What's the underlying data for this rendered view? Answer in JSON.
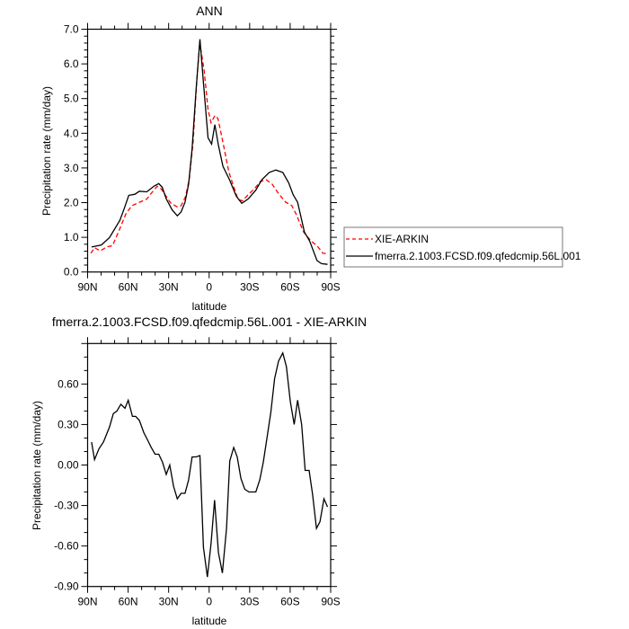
{
  "chart_data": [
    {
      "type": "line",
      "title": "ANN",
      "xlabel": "latitude",
      "ylabel": "Precipitation rate (mm/day)",
      "xlim": [
        90,
        -90
      ],
      "ylim": [
        0,
        7
      ],
      "x_ticks": [
        90,
        60,
        30,
        0,
        -30,
        -60,
        -90
      ],
      "x_tick_labels": [
        "90N",
        "60N",
        "30N",
        "0",
        "30S",
        "60S",
        "90S"
      ],
      "y_ticks": [
        0,
        1,
        2,
        3,
        4,
        5,
        6,
        7
      ],
      "y_tick_labels": [
        "0.0",
        "1.0",
        "2.0",
        "3.0",
        "4.0",
        "5.0",
        "6.0",
        "7.0"
      ],
      "grid": false,
      "legend_placement": "right",
      "series": [
        {
          "name": "XIE-ARKIN",
          "color": "#ff0000",
          "dash": "dashed",
          "x": [
            87.6,
            84.9,
            80.5,
            76.1,
            71.6,
            67.2,
            61.7,
            57.3,
            51.7,
            46.2,
            42.9,
            38.5,
            35.6,
            31.8,
            28.5,
            24,
            20.8,
            17.4,
            14.7,
            11.9,
            9.7,
            7,
            3.7,
            0.8,
            -1.4,
            -4.2,
            -6.5,
            -10.2,
            -14.7,
            -18,
            -21.3,
            -24.6,
            -29,
            -33.5,
            -37.9,
            -42.3,
            -46.7,
            -51.2,
            -56.7,
            -61.1,
            -64.4,
            -70,
            -75.5,
            -79.9,
            -84.3,
            -87.7
          ],
          "y": [
            0.54,
            0.7,
            0.61,
            0.72,
            0.76,
            1.15,
            1.67,
            1.91,
            2.01,
            2.1,
            2.27,
            2.47,
            2.4,
            2.18,
            1.99,
            1.88,
            1.91,
            2.18,
            2.7,
            3.74,
            5.2,
            6.63,
            5.81,
            4.69,
            4.3,
            4.51,
            4.43,
            3.74,
            2.87,
            2.48,
            2.1,
            2.05,
            2.23,
            2.4,
            2.61,
            2.66,
            2.53,
            2.27,
            2.01,
            1.92,
            1.67,
            1.15,
            0.89,
            0.76,
            0.54,
            0.53
          ]
        },
        {
          "name": "fmerra.2.1003.FCSD.f09.qfedcmip.56L.001",
          "color": "#000000",
          "dash": "solid",
          "x": [
            87.1,
            79.8,
            73.8,
            66.1,
            62.8,
            59.5,
            55,
            51.7,
            46.2,
            40.7,
            37.3,
            34.7,
            31.8,
            27.4,
            23.6,
            20.8,
            17.9,
            15.2,
            12.6,
            9.7,
            6.8,
            4.2,
            0.8,
            -1.8,
            -4.2,
            -6.9,
            -10.2,
            -15.1,
            -20.2,
            -24.2,
            -29,
            -34.6,
            -39,
            -44.5,
            -49.4,
            -54.5,
            -58.9,
            -62.2,
            -65.5,
            -70.6,
            -74.4,
            -79.9,
            -83.2,
            -87.7
          ],
          "y": [
            0.72,
            0.78,
            0.99,
            1.49,
            1.84,
            2.21,
            2.24,
            2.33,
            2.31,
            2.48,
            2.55,
            2.44,
            2.11,
            1.79,
            1.62,
            1.73,
            2.01,
            2.53,
            3.56,
            5.25,
            6.71,
            5.46,
            3.87,
            3.69,
            4.25,
            3.65,
            3.05,
            2.66,
            2.18,
            1.98,
            2.11,
            2.36,
            2.66,
            2.87,
            2.94,
            2.87,
            2.57,
            2.23,
            2.01,
            1.15,
            0.89,
            0.33,
            0.24,
            0.22
          ]
        }
      ]
    },
    {
      "type": "line",
      "title": "fmerra.2.1003.FCSD.f09.qfedcmip.56L.001 - XIE-ARKIN",
      "xlabel": "latitude",
      "ylabel": "Precipitation rate (mm/day)",
      "xlim": [
        90,
        -90
      ],
      "ylim": [
        -0.9,
        0.9
      ],
      "x_ticks": [
        90,
        60,
        30,
        0,
        -30,
        -60,
        -90
      ],
      "x_tick_labels": [
        "90N",
        "60N",
        "30N",
        "0",
        "30S",
        "60S",
        "90S"
      ],
      "y_ticks": [
        0.6,
        0.3,
        0,
        -0.3,
        -0.6,
        -0.9
      ],
      "y_tick_labels": [
        "0.60",
        "0.30",
        "0.00",
        "-0.30",
        "-0.60",
        "-0.90"
      ],
      "grid": false,
      "series": [
        {
          "color": "#000000",
          "dash": "solid",
          "x": [
            87.1,
            84.9,
            81.6,
            78.3,
            73.8,
            71,
            68.3,
            65.4,
            62.3,
            59.9,
            56.8,
            54.4,
            51.7,
            48.4,
            45.8,
            42.9,
            40,
            37.3,
            34.5,
            31.8,
            29.2,
            26.3,
            23.6,
            20.8,
            17.9,
            15.2,
            12.6,
            9.7,
            6.8,
            4.2,
            1.3,
            -1.4,
            -4,
            -6.9,
            -9.8,
            -12.9,
            -15.3,
            -18.2,
            -20.8,
            -23.5,
            -26.4,
            -29.5,
            -31.7,
            -34.6,
            -37.5,
            -40.1,
            -42.8,
            -45.7,
            -48.5,
            -51.4,
            -54.5,
            -57.2,
            -60.1,
            -63,
            -65.5,
            -68.5,
            -71.1,
            -74,
            -76.6,
            -79.5,
            -82.1,
            -85,
            -87.7
          ],
          "y": [
            0.17,
            0.04,
            0.12,
            0.17,
            0.28,
            0.38,
            0.4,
            0.45,
            0.42,
            0.48,
            0.36,
            0.36,
            0.33,
            0.24,
            0.19,
            0.13,
            0.08,
            0.08,
            0.02,
            -0.07,
            0.0,
            -0.16,
            -0.25,
            -0.21,
            -0.21,
            -0.11,
            0.06,
            0.06,
            0.07,
            -0.61,
            -0.83,
            -0.58,
            -0.26,
            -0.65,
            -0.8,
            -0.47,
            0.03,
            0.13,
            0.06,
            -0.1,
            -0.18,
            -0.2,
            -0.2,
            -0.2,
            -0.11,
            0.02,
            0.2,
            0.39,
            0.64,
            0.77,
            0.83,
            0.73,
            0.47,
            0.3,
            0.48,
            0.3,
            -0.04,
            -0.04,
            -0.22,
            -0.47,
            -0.42,
            -0.25,
            -0.31
          ]
        }
      ]
    }
  ]
}
